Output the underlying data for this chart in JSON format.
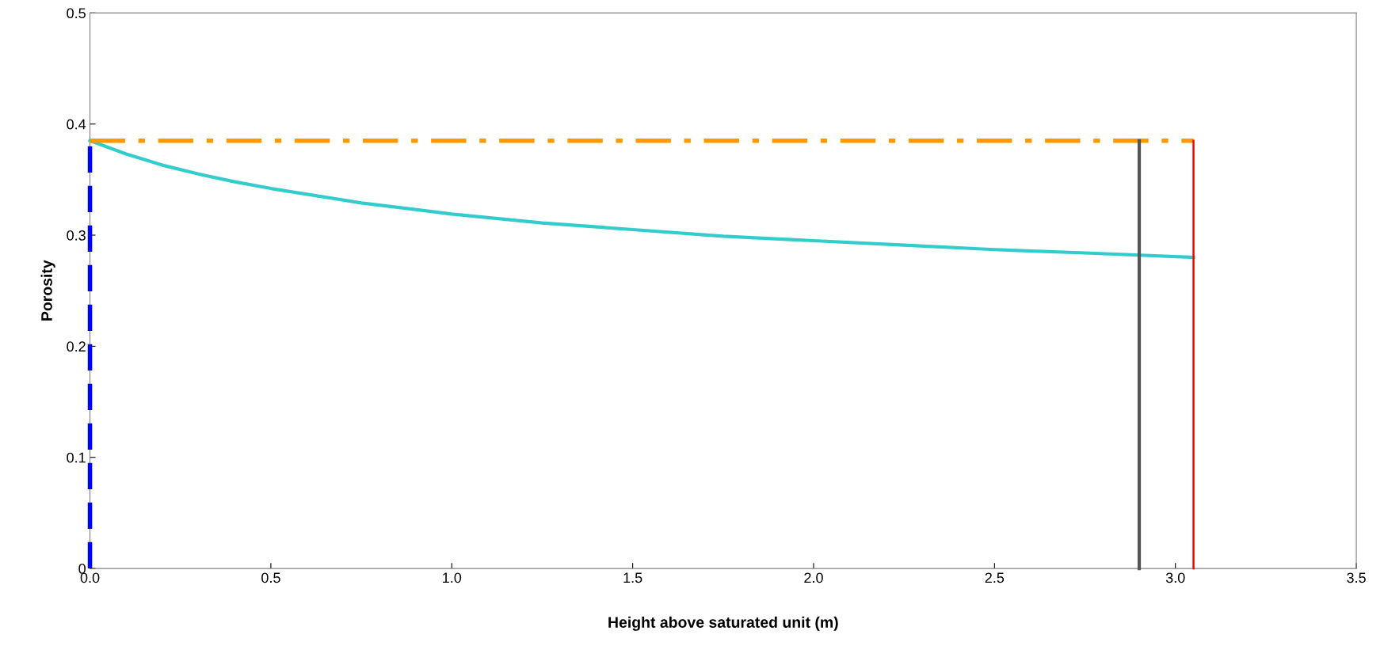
{
  "chart_data": {
    "type": "line",
    "xlabel": "Height above saturated unit (m)",
    "ylabel": "Porosity",
    "xlim": [
      0,
      3.5
    ],
    "ylim": [
      0,
      0.5
    ],
    "xticks": [
      {
        "value": 0,
        "label": "0.0"
      },
      {
        "value": 0.5,
        "label": "0.5"
      },
      {
        "value": 1,
        "label": "1.0"
      },
      {
        "value": 1.5,
        "label": "1.5"
      },
      {
        "value": 2,
        "label": "2.0"
      },
      {
        "value": 2.5,
        "label": "2.5"
      },
      {
        "value": 3,
        "label": "3.0"
      },
      {
        "value": 3.5,
        "label": "3.5"
      }
    ],
    "yticks": [
      0,
      0.1,
      0.2,
      0.3,
      0.4,
      0.5
    ],
    "grid": false,
    "legend": false,
    "marker": "none",
    "series": [
      {
        "color": "#33cccc",
        "line_style": "solid",
        "x": [
          0,
          0.1,
          0.2,
          0.3,
          0.4,
          0.5,
          0.75,
          1.0,
          1.25,
          1.5,
          1.75,
          2.0,
          2.25,
          2.5,
          2.75,
          3.05
        ],
        "values": [
          0.385,
          0.373,
          0.363,
          0.355,
          0.348,
          0.342,
          0.329,
          0.319,
          0.311,
          0.305,
          0.299,
          0.295,
          0.291,
          0.287,
          0.284,
          0.28
        ]
      },
      {
        "color": "#0000ff",
        "line_style": "dashed",
        "x": [
          0,
          0
        ],
        "values": [
          0,
          0.385
        ]
      },
      {
        "color": "#ff9900",
        "line_style": "dashdot",
        "x": [
          0,
          3.05
        ],
        "values": [
          0.385,
          0.385
        ]
      },
      {
        "color": "#555555",
        "line_style": "solid",
        "x": [
          2.9,
          2.9
        ],
        "values": [
          0,
          0.385
        ]
      },
      {
        "color": "#ff0000",
        "line_style": "solid",
        "x": [
          3.05,
          3.05
        ],
        "values": [
          0,
          0.385
        ]
      }
    ]
  }
}
